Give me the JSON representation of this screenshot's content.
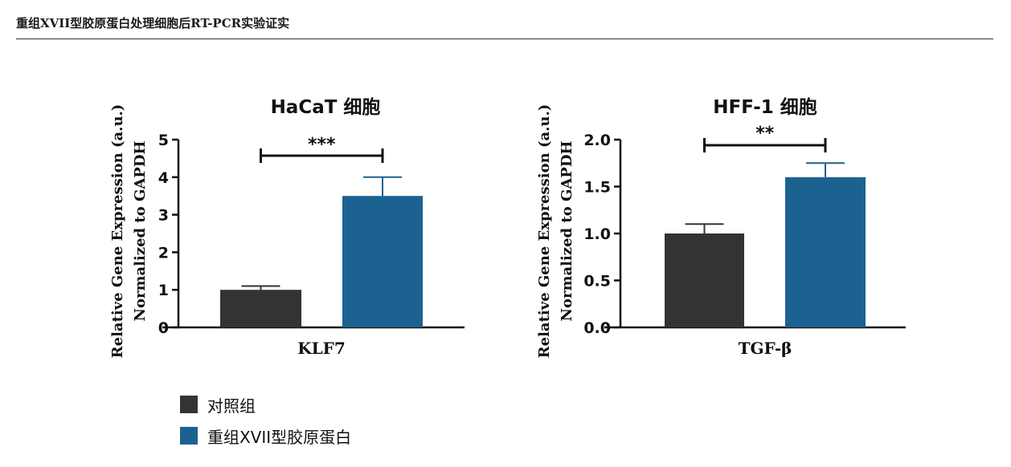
{
  "page": {
    "title": "重组XVII型胶原蛋白处理细胞后RT-PCR实验证实"
  },
  "colors": {
    "control": "#333333",
    "treatment": "#1c6291",
    "axis": "#111111"
  },
  "legend": [
    {
      "label": "对照组",
      "color": "#333333"
    },
    {
      "label": "重组XVII型胶原蛋白",
      "color": "#1c6291"
    }
  ],
  "chart_data": [
    {
      "type": "bar",
      "title": "HaCaT 细胞",
      "ylabel_line1": "Relative Gene Expression (a.u.)",
      "ylabel_line2": "Normalized to GAPDH",
      "xlabel": "KLF7",
      "ylim": [
        0,
        5
      ],
      "yticks": [
        0,
        1,
        2,
        3,
        4,
        5
      ],
      "ytick_labels": [
        "0",
        "1",
        "2",
        "3",
        "4",
        "5"
      ],
      "series": [
        {
          "name": "对照组",
          "value": 1.0,
          "error": 0.1,
          "color": "#333333"
        },
        {
          "name": "重组XVII型胶原蛋白",
          "value": 3.5,
          "error": 0.5,
          "color": "#1c6291"
        }
      ],
      "significance": "***"
    },
    {
      "type": "bar",
      "title": "HFF-1 细胞",
      "ylabel_line1": "Relative Gene Expression (a.u.)",
      "ylabel_line2": "Normalized to GAPDH",
      "xlabel": "TGF-β",
      "ylim": [
        0,
        2.0
      ],
      "yticks": [
        0,
        0.5,
        1.0,
        1.5,
        2.0
      ],
      "ytick_labels": [
        "0.0",
        "0.5",
        "1.0",
        "1.5",
        "2.0"
      ],
      "series": [
        {
          "name": "对照组",
          "value": 1.0,
          "error": 0.1,
          "color": "#333333"
        },
        {
          "name": "重组XVII型胶原蛋白",
          "value": 1.6,
          "error": 0.15,
          "color": "#1c6291"
        }
      ],
      "significance": "**"
    }
  ]
}
